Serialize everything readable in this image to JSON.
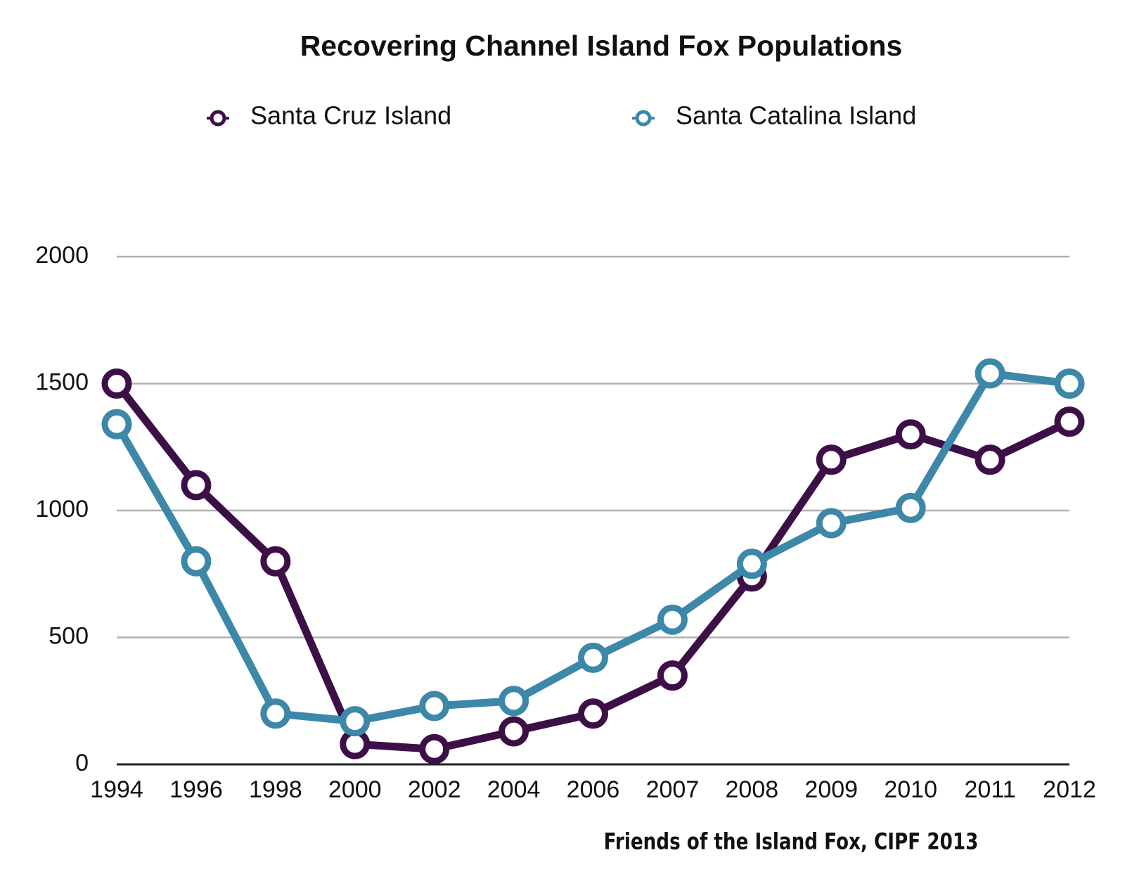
{
  "chart_data": {
    "type": "line",
    "title": "Recovering Channel Island Fox Populations",
    "source": "Friends of the Island Fox, CIPF 2013",
    "categories": [
      "1994",
      "1996",
      "1998",
      "2000",
      "2002",
      "2004",
      "2006",
      "2007",
      "2008",
      "2009",
      "2010",
      "2011",
      "2012"
    ],
    "series": [
      {
        "name": "Santa Cruz Island",
        "color": "#3d0f47",
        "values": [
          1500,
          1100,
          800,
          80,
          60,
          130,
          200,
          350,
          740,
          1200,
          1300,
          1200,
          1350
        ]
      },
      {
        "name": "Santa Catalina Island",
        "color": "#3d87a8",
        "values": [
          1340,
          800,
          200,
          170,
          230,
          250,
          420,
          570,
          790,
          950,
          1010,
          1540,
          1500
        ]
      }
    ],
    "ylim": [
      0,
      2000
    ],
    "yticks": [
      0,
      500,
      1000,
      1500,
      2000
    ],
    "grid": true
  }
}
